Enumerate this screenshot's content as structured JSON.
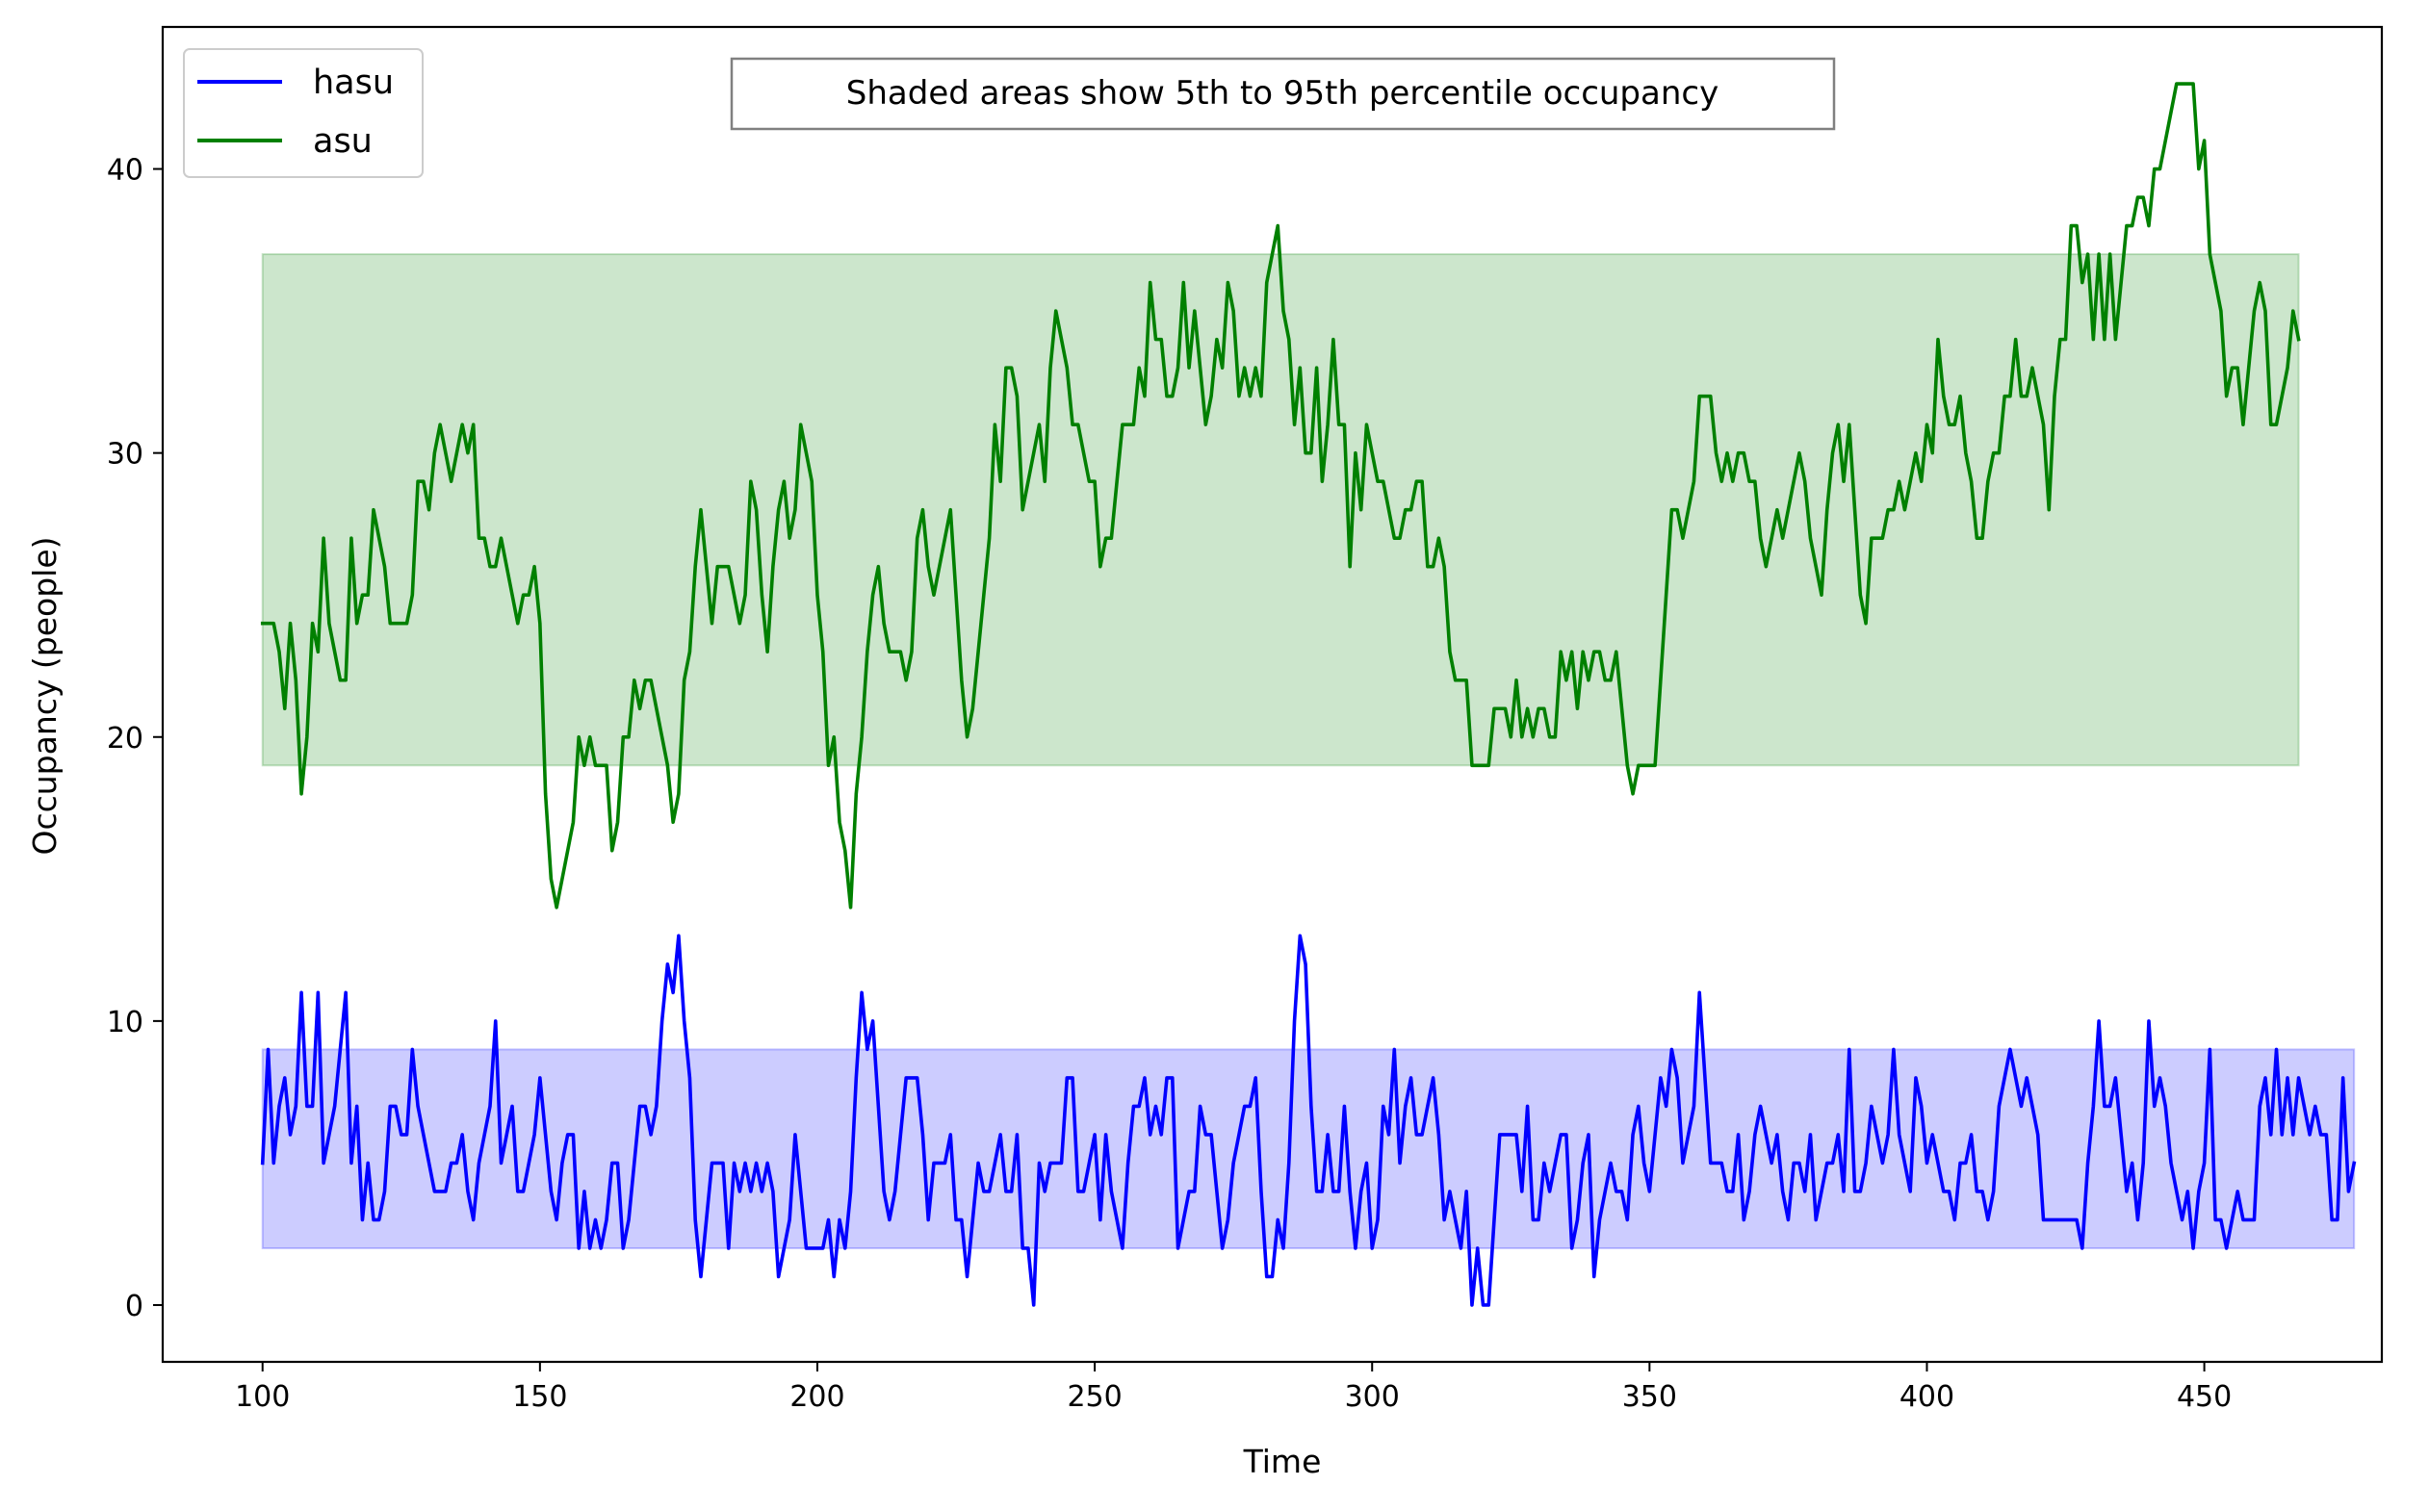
{
  "chart_data": {
    "type": "line",
    "title": "",
    "xlabel": "Time",
    "ylabel": "Occupancy (people)",
    "xlim": [
      82,
      482
    ],
    "ylim": [
      -2,
      45
    ],
    "x_ticks": [
      100,
      150,
      200,
      250,
      300,
      350,
      400,
      450
    ],
    "y_ticks": [
      0,
      10,
      20,
      30,
      40
    ],
    "grid": false,
    "legend_position": "top-left",
    "annotation": "Shaded areas show 5th to 95th percentile occupancy",
    "x_start": 100,
    "x_step": 1,
    "series": [
      {
        "name": "hasu",
        "color": "#0000ff",
        "band": [
          2,
          9
        ],
        "band_color": "#0000ff",
        "values": [
          5,
          9,
          5,
          7,
          8,
          6,
          7,
          11,
          7,
          7,
          11,
          5,
          6,
          7,
          9,
          11,
          5,
          7,
          3,
          5,
          3,
          3,
          4,
          7,
          7,
          6,
          6,
          9,
          7,
          6,
          5,
          4,
          4,
          4,
          5,
          5,
          6,
          4,
          3,
          5,
          6,
          7,
          10,
          5,
          6,
          7,
          4,
          4,
          5,
          6,
          8,
          6,
          4,
          3,
          5,
          6,
          6,
          2,
          4,
          2,
          3,
          2,
          3,
          5,
          5,
          2,
          3,
          5,
          7,
          7,
          6,
          7,
          10,
          12,
          11,
          13,
          10,
          8,
          3,
          1,
          3,
          5,
          5,
          5,
          2,
          5,
          4,
          5,
          4,
          5,
          4,
          5,
          4,
          1,
          2,
          3,
          6,
          4,
          2,
          2,
          2,
          2,
          3,
          1,
          3,
          2,
          4,
          8,
          11,
          9,
          10,
          7,
          4,
          3,
          4,
          6,
          8,
          8,
          8,
          6,
          3,
          5,
          5,
          5,
          6,
          3,
          3,
          1,
          3,
          5,
          4,
          4,
          5,
          6,
          4,
          4,
          6,
          2,
          2,
          0,
          5,
          4,
          5,
          5,
          5,
          8,
          8,
          4,
          4,
          5,
          6,
          3,
          6,
          4,
          3,
          2,
          5,
          7,
          7,
          8,
          6,
          7,
          6,
          8,
          8,
          2,
          3,
          4,
          4,
          7,
          6,
          6,
          4,
          2,
          3,
          5,
          6,
          7,
          7,
          8,
          4,
          1,
          1,
          3,
          2,
          5,
          10,
          13,
          12,
          7,
          4,
          4,
          6,
          4,
          4,
          7,
          4,
          2,
          4,
          5,
          2,
          3,
          7,
          6,
          9,
          5,
          7,
          8,
          6,
          6,
          7,
          8,
          6,
          3,
          4,
          3,
          2,
          4,
          0,
          2,
          0,
          0,
          3,
          6,
          6,
          6,
          6,
          4,
          7,
          3,
          3,
          5,
          4,
          5,
          6,
          6,
          2,
          3,
          5,
          6,
          1,
          3,
          4,
          5,
          4,
          4,
          3,
          6,
          7,
          5,
          4,
          6,
          8,
          7,
          9,
          8,
          5,
          6,
          7,
          11,
          8,
          5,
          5,
          5,
          4,
          4,
          6,
          3,
          4,
          6,
          7,
          6,
          5,
          6,
          4,
          3,
          5,
          5,
          4,
          6,
          3,
          4,
          5,
          5,
          6,
          4,
          9,
          4,
          4,
          5,
          7,
          6,
          5,
          6,
          9,
          6,
          5,
          4,
          8,
          7,
          5,
          6,
          5,
          4,
          4,
          3,
          5,
          5,
          6,
          4,
          4,
          3,
          4,
          7,
          8,
          9,
          8,
          7,
          8,
          7,
          6,
          3,
          3,
          3,
          3,
          3,
          3,
          3,
          2,
          5,
          7,
          10,
          7,
          7,
          8,
          6,
          4,
          5,
          3,
          5,
          10,
          7,
          8,
          7,
          5,
          4,
          3,
          4,
          2,
          4,
          5,
          9,
          3,
          3,
          2,
          3,
          4,
          3,
          3,
          3,
          7,
          8,
          6,
          9,
          6,
          8,
          6,
          8,
          7,
          6,
          7,
          6,
          6,
          3,
          3,
          8,
          4,
          5
        ]
      },
      {
        "name": "asu",
        "color": "#008000",
        "band": [
          19,
          37
        ],
        "band_color": "#008000",
        "values": [
          24,
          24,
          24,
          23,
          21,
          24,
          22,
          18,
          20,
          24,
          23,
          27,
          24,
          23,
          22,
          22,
          27,
          24,
          25,
          25,
          28,
          27,
          26,
          24,
          24,
          24,
          24,
          25,
          29,
          29,
          28,
          30,
          31,
          30,
          29,
          30,
          31,
          30,
          31,
          27,
          27,
          26,
          26,
          27,
          26,
          25,
          24,
          25,
          25,
          26,
          24,
          18,
          15,
          14,
          15,
          16,
          17,
          20,
          19,
          20,
          19,
          19,
          19,
          16,
          17,
          20,
          20,
          22,
          21,
          22,
          22,
          21,
          20,
          19,
          17,
          18,
          22,
          23,
          26,
          28,
          26,
          24,
          26,
          26,
          26,
          25,
          24,
          25,
          29,
          28,
          25,
          23,
          26,
          28,
          29,
          27,
          28,
          31,
          30,
          29,
          25,
          23,
          19,
          20,
          17,
          16,
          14,
          18,
          20,
          23,
          25,
          26,
          24,
          23,
          23,
          23,
          22,
          23,
          27,
          28,
          26,
          25,
          26,
          27,
          28,
          25,
          22,
          20,
          21,
          23,
          25,
          27,
          31,
          29,
          33,
          33,
          32,
          28,
          29,
          30,
          31,
          29,
          33,
          35,
          34,
          33,
          31,
          31,
          30,
          29,
          29,
          26,
          27,
          27,
          29,
          31,
          31,
          31,
          33,
          32,
          36,
          34,
          34,
          32,
          32,
          33,
          36,
          33,
          35,
          33,
          31,
          32,
          34,
          33,
          36,
          35,
          32,
          33,
          32,
          33,
          32,
          36,
          37,
          38,
          35,
          34,
          31,
          33,
          30,
          30,
          33,
          29,
          31,
          34,
          31,
          31,
          26,
          30,
          28,
          31,
          30,
          29,
          29,
          28,
          27,
          27,
          28,
          28,
          29,
          29,
          26,
          26,
          27,
          26,
          23,
          22,
          22,
          22,
          19,
          19,
          19,
          19,
          21,
          21,
          21,
          20,
          22,
          20,
          21,
          20,
          21,
          21,
          20,
          20,
          23,
          22,
          23,
          21,
          23,
          22,
          23,
          23,
          22,
          22,
          23,
          21,
          19,
          18,
          19,
          19,
          19,
          19,
          22,
          25,
          28,
          28,
          27,
          28,
          29,
          32,
          32,
          32,
          30,
          29,
          30,
          29,
          30,
          30,
          29,
          29,
          27,
          26,
          27,
          28,
          27,
          28,
          29,
          30,
          29,
          27,
          26,
          25,
          28,
          30,
          31,
          29,
          31,
          28,
          25,
          24,
          27,
          27,
          27,
          28,
          28,
          29,
          28,
          29,
          30,
          29,
          31,
          30,
          34,
          32,
          31,
          31,
          32,
          30,
          29,
          27,
          27,
          29,
          30,
          30,
          32,
          32,
          34,
          32,
          32,
          33,
          32,
          31,
          28,
          32,
          34,
          34,
          38,
          38,
          36,
          37,
          34,
          37,
          34,
          37,
          34,
          36,
          38,
          38,
          39,
          39,
          38,
          40,
          40,
          41,
          42,
          43,
          43,
          43,
          43,
          40,
          41,
          37,
          36,
          35,
          32,
          33,
          33,
          31,
          33,
          35,
          36,
          35,
          31,
          31,
          32,
          33,
          35,
          34
        ]
      }
    ]
  }
}
